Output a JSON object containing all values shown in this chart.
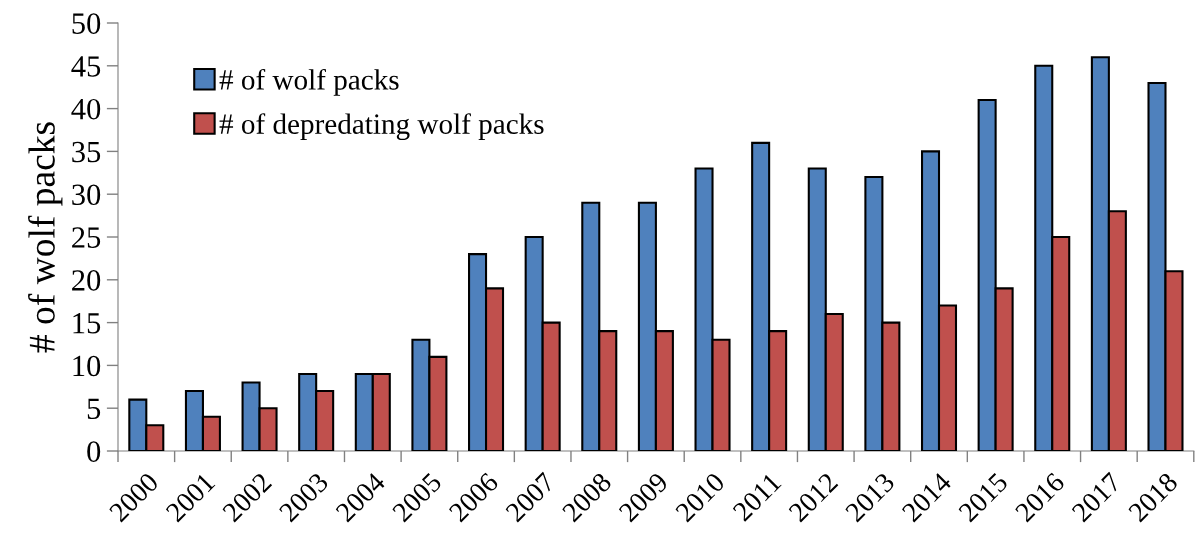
{
  "chart_data": {
    "type": "bar",
    "ylabel": "# of wolf packs",
    "categories": [
      "2000",
      "2001",
      "2002",
      "2003",
      "2004",
      "2005",
      "2006",
      "2007",
      "2008",
      "2009",
      "2010",
      "2011",
      "2012",
      "2013",
      "2014",
      "2015",
      "2016",
      "2017",
      "2018"
    ],
    "series": [
      {
        "name": "# of wolf packs",
        "color": "#4f81bd",
        "values": [
          6,
          7,
          8,
          9,
          9,
          13,
          23,
          25,
          29,
          29,
          33,
          36,
          33,
          32,
          35,
          41,
          45,
          46,
          43
        ]
      },
      {
        "name": "# of depredating wolf packs",
        "color": "#c0504d",
        "values": [
          3,
          4,
          5,
          7,
          9,
          11,
          19,
          15,
          14,
          14,
          13,
          14,
          16,
          15,
          17,
          19,
          25,
          28,
          21
        ]
      }
    ],
    "ylim": [
      0,
      50
    ],
    "yticks": [
      0,
      5,
      10,
      15,
      20,
      25,
      30,
      35,
      40,
      45,
      50
    ],
    "grid": false,
    "legend": "top left"
  }
}
